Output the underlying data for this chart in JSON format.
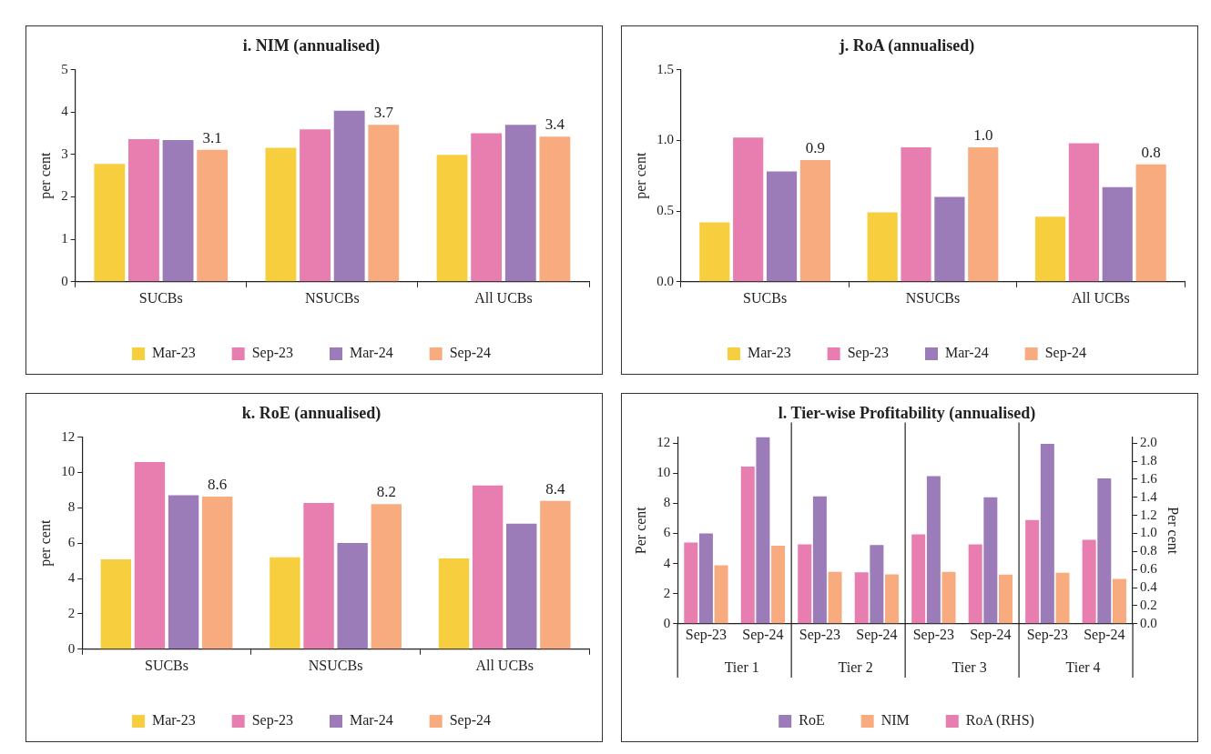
{
  "chart_data": [
    {
      "type": "bar",
      "title": "i. NIM (annualised)",
      "ylabel": "per cent",
      "categories": [
        "SUCBs",
        "NSUCBs",
        "All UCBs"
      ],
      "ylim": [
        0,
        5
      ],
      "yticks": [
        0,
        1,
        2,
        3,
        4,
        5
      ],
      "legend": "bottom",
      "grid": false,
      "series": [
        {
          "name": "Mar-23",
          "color": "#f7ce3e",
          "values": [
            2.78,
            3.16,
            2.99
          ]
        },
        {
          "name": "Sep-23",
          "color": "#e87db0",
          "values": [
            3.36,
            3.59,
            3.5
          ]
        },
        {
          "name": "Mar-24",
          "color": "#9b7bb8",
          "values": [
            3.34,
            4.03,
            3.7
          ]
        },
        {
          "name": "Sep-24",
          "color": "#f7ab7f",
          "values": [
            3.11,
            3.7,
            3.42
          ],
          "value_labels": [
            "3.1",
            "3.7",
            "3.4"
          ]
        }
      ]
    },
    {
      "type": "bar",
      "title": "j. RoA (annualised)",
      "ylabel": "per cent",
      "categories": [
        "SUCBs",
        "NSUCBs",
        "All UCBs"
      ],
      "ylim": [
        0,
        1.5
      ],
      "yticks": [
        {
          "value": 0,
          "label": "0.0"
        },
        {
          "value": 0.5,
          "label": "0.5"
        },
        {
          "value": 1,
          "label": "1.0"
        },
        {
          "value": 1.5,
          "label": "1.5"
        }
      ],
      "legend": "bottom",
      "grid": false,
      "series": [
        {
          "name": "Mar-23",
          "color": "#f7ce3e",
          "values": [
            0.42,
            0.49,
            0.46
          ]
        },
        {
          "name": "Sep-23",
          "color": "#e87db0",
          "values": [
            1.02,
            0.95,
            0.98
          ]
        },
        {
          "name": "Mar-24",
          "color": "#9b7bb8",
          "values": [
            0.78,
            0.6,
            0.67
          ]
        },
        {
          "name": "Sep-24",
          "color": "#f7ab7f",
          "values": [
            0.86,
            0.95,
            0.83
          ],
          "value_labels": [
            "0.9",
            "1.0",
            "0.8"
          ]
        }
      ]
    },
    {
      "type": "bar",
      "title": "k. RoE (annualised)",
      "ylabel": "per cent",
      "categories": [
        "SUCBs",
        "NSUCBs",
        "All UCBs"
      ],
      "ylim": [
        0,
        12
      ],
      "yticks": [
        0,
        2,
        4,
        6,
        8,
        10,
        12
      ],
      "legend": "bottom",
      "grid": false,
      "series": [
        {
          "name": "Mar-23",
          "color": "#f7ce3e",
          "values": [
            5.08,
            5.2,
            5.14
          ]
        },
        {
          "name": "Sep-23",
          "color": "#e87db0",
          "values": [
            10.59,
            8.27,
            9.26
          ]
        },
        {
          "name": "Mar-24",
          "color": "#9b7bb8",
          "values": [
            8.71,
            6.01,
            7.11
          ]
        },
        {
          "name": "Sep-24",
          "color": "#f7ab7f",
          "values": [
            8.64,
            8.21,
            8.39
          ],
          "value_labels": [
            "8.6",
            "8.2",
            "8.4"
          ]
        }
      ]
    },
    {
      "type": "bar",
      "title": "l. Tier-wise Profitability (annualised)",
      "ylabel": "Per cent",
      "y2label": "Per cent",
      "categories": [
        "Sep-23",
        "Sep-24",
        "Sep-23",
        "Sep-24",
        "Sep-23",
        "Sep-24",
        "Sep-23",
        "Sep-24"
      ],
      "annotations": [
        "Tier 1",
        "Tier 2",
        "Tier 3",
        "Tier 4"
      ],
      "ylim": [
        0,
        12.4
      ],
      "yticks": [
        0,
        2,
        4,
        6,
        8,
        10,
        12
      ],
      "y2lim": [
        0,
        2.067
      ],
      "y2ticks": [
        {
          "value": 0,
          "label": "0.0"
        },
        {
          "value": 0.2,
          "label": "0.2"
        },
        {
          "value": 0.4,
          "label": "0.4"
        },
        {
          "value": 0.6,
          "label": "0.6"
        },
        {
          "value": 0.8,
          "label": "0.8"
        },
        {
          "value": 1,
          "label": "1.0"
        },
        {
          "value": 1.2,
          "label": "1.2"
        },
        {
          "value": 1.4,
          "label": "1.4"
        },
        {
          "value": 1.6,
          "label": "1.6"
        },
        {
          "value": 1.8,
          "label": "1.8"
        },
        {
          "value": 2,
          "label": "2.0"
        }
      ],
      "legend": "bottom",
      "grid": false,
      "series": [
        {
          "name": "RoA (RHS)",
          "color": "#e87db0",
          "axis": "y2",
          "values": [
            0.9,
            1.74,
            0.88,
            0.57,
            0.99,
            0.88,
            1.15,
            0.93
          ]
        },
        {
          "name": "RoE",
          "color": "#9b7bb8",
          "values": [
            6.0,
            12.4,
            8.47,
            5.23,
            9.81,
            8.41,
            11.96,
            9.66
          ]
        },
        {
          "name": "NIM",
          "color": "#f7ab7f",
          "values": [
            3.88,
            5.19,
            3.44,
            3.28,
            3.44,
            3.26,
            3.39,
            2.98
          ]
        }
      ]
    }
  ]
}
